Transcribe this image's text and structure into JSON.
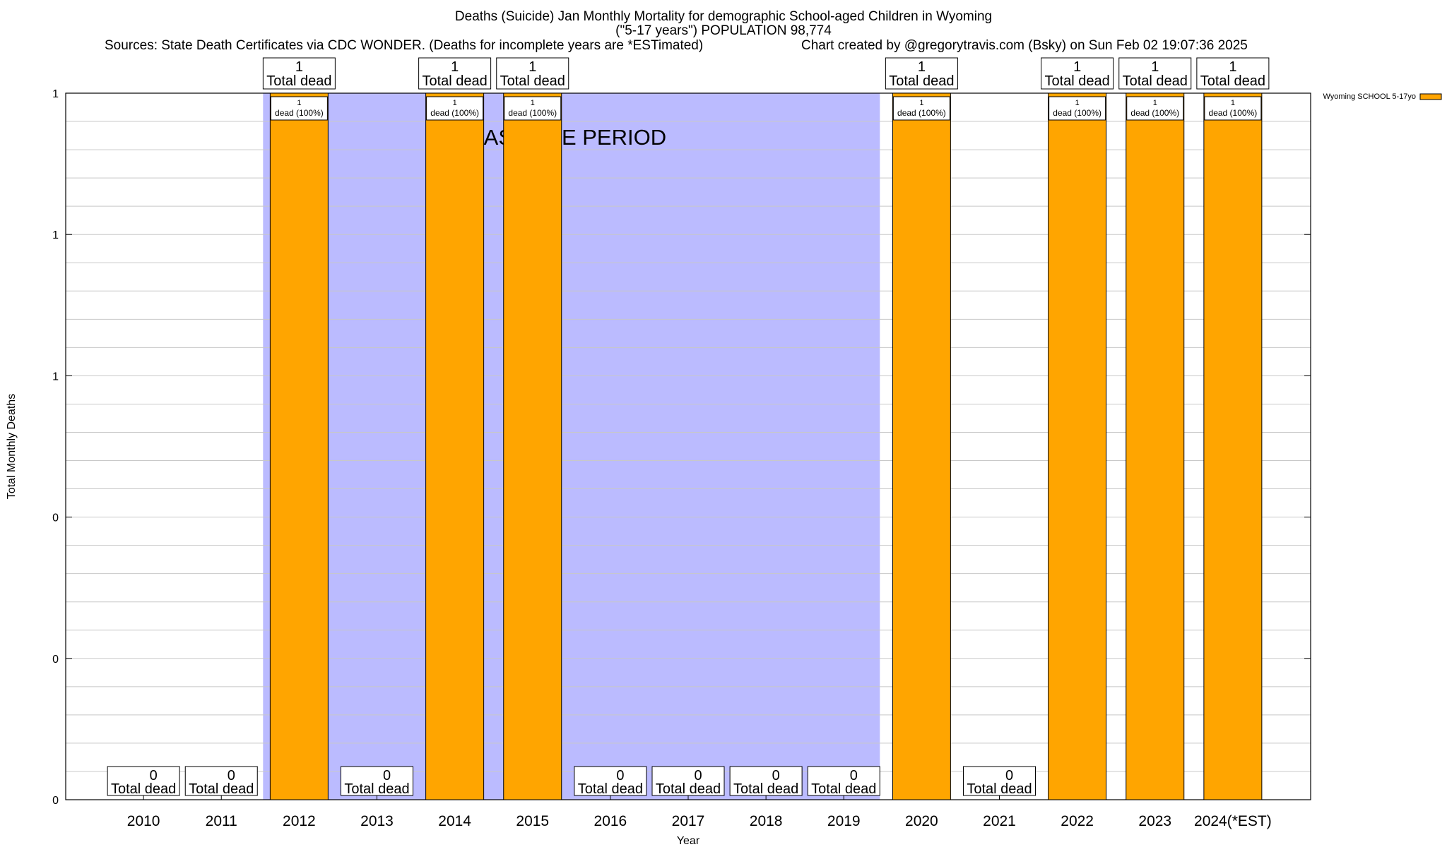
{
  "header": {
    "title_line1": "Deaths (Suicide) Jan Monthly Mortality for demographic School-aged Children in Wyoming",
    "title_line2": "(\"5-17 years\") POPULATION 98,774",
    "sources": "Sources: State Death Certificates via CDC WONDER. (Deaths for incomplete years are *ESTimated)",
    "credit": "Chart created by @gregorytravis.com (Bsky) on Sun Feb 02 19:07:36 2025"
  },
  "chart_data": {
    "type": "bar",
    "title": "Deaths (Suicide) Jan Monthly Mortality for demographic School-aged Children in Wyoming",
    "xlabel": "Year",
    "ylabel": "Total Monthly Deaths",
    "ylim": [
      0,
      1
    ],
    "y_tick_labels": [
      "0",
      "0",
      "0",
      "1",
      "1",
      "1"
    ],
    "categories": [
      "2010",
      "2011",
      "2012",
      "2013",
      "2014",
      "2015",
      "2016",
      "2017",
      "2018",
      "2019",
      "2020",
      "2021",
      "2022",
      "2023",
      "2024(*EST)"
    ],
    "series": [
      {
        "name": "Wyoming SCHOOL 5-17yo",
        "values": [
          0,
          0,
          1,
          0,
          1,
          1,
          0,
          0,
          0,
          0,
          1,
          0,
          1,
          1,
          1
        ]
      }
    ],
    "total_label_suffix": "Total dead",
    "bar_label_count": "1",
    "bar_label_detail": "dead (100%)",
    "baseline": {
      "label": "BASELINE PERIOD",
      "start": "2012",
      "end": "2019"
    },
    "grid": true,
    "legend_position": "top-right",
    "colors": {
      "bar": "#ffa500",
      "baseline": "#bbbbff",
      "grid": "#c8c8c8"
    }
  }
}
